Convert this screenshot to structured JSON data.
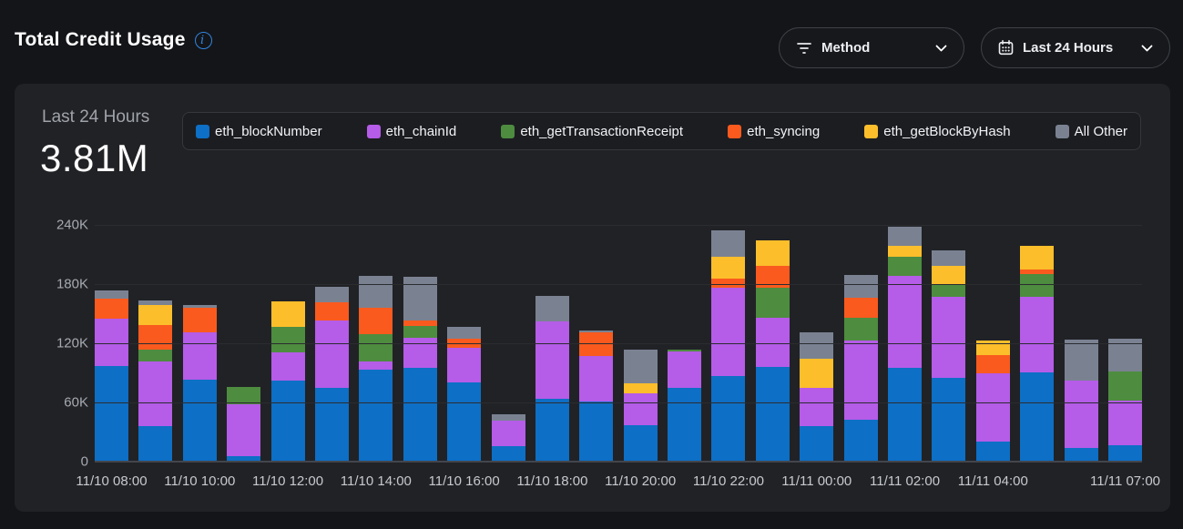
{
  "header": {
    "title": "Total Credit Usage"
  },
  "filters": {
    "method_label": "Method",
    "range_label": "Last 24 Hours"
  },
  "card": {
    "summary_label": "Last 24 Hours",
    "summary_value": "3.81M"
  },
  "icons": {
    "info": "info-icon",
    "filter": "filter-icon",
    "calendar": "calendar-icon",
    "chevron": "chevron-down-icon"
  },
  "colors": {
    "accent_blue": "#2F86E0",
    "page_bg": "#141519",
    "card_bg": "#212226",
    "legend_bg": "#1c1d21"
  },
  "chart_data": {
    "type": "bar",
    "stacked": true,
    "title": "Total Credit Usage",
    "period": "Last 24 Hours",
    "total": "3.81M",
    "ylim": [
      0,
      240000
    ],
    "y_ticks": [
      "0",
      "60K",
      "120K",
      "180K",
      "240K"
    ],
    "grid": true,
    "legend_position": "top",
    "x": [
      "11/10 08:00",
      "11/10 09:00",
      "11/10 10:00",
      "11/10 11:00",
      "11/10 12:00",
      "11/10 13:00",
      "11/10 14:00",
      "11/10 15:00",
      "11/10 16:00",
      "11/10 17:00",
      "11/10 18:00",
      "11/10 19:00",
      "11/10 20:00",
      "11/10 21:00",
      "11/10 22:00",
      "11/10 23:00",
      "11/11 00:00",
      "11/11 01:00",
      "11/11 02:00",
      "11/11 03:00",
      "11/11 04:00",
      "11/11 05:00",
      "11/11 06:00",
      "11/11 07:00"
    ],
    "x_tick_indices": [
      0,
      2,
      4,
      6,
      8,
      10,
      12,
      14,
      16,
      18,
      20,
      23
    ],
    "series": [
      {
        "name": "eth_blockNumber",
        "color": "#0D6FC5",
        "values": [
          96600,
          36000,
          83100,
          6000,
          82000,
          74800,
          93100,
          95300,
          80600,
          16000,
          63700,
          60600,
          36900,
          74500,
          86800,
          95600,
          36000,
          42500,
          94800,
          84600,
          20000,
          90800,
          13800,
          16900
        ]
      },
      {
        "name": "eth_chainId",
        "color": "#B55CE8",
        "values": [
          48000,
          65500,
          47700,
          52000,
          29100,
          68600,
          8300,
          30600,
          34800,
          25500,
          78500,
          46200,
          32300,
          37200,
          89200,
          50000,
          38800,
          80000,
          93500,
          82200,
          69200,
          76000,
          68300,
          45200
        ]
      },
      {
        "name": "eth_getTransactionReceipt",
        "color": "#4E8C3F",
        "values": [
          0,
          11700,
          0,
          18000,
          25500,
          0,
          27600,
          11600,
          0,
          0,
          0,
          0,
          0,
          2000,
          0,
          30600,
          0,
          23700,
          19400,
          13200,
          0,
          23100,
          0,
          29200
        ]
      },
      {
        "name": "eth_syncing",
        "color": "#FA5A1E",
        "values": [
          20600,
          25200,
          25500,
          0,
          0,
          18400,
          26700,
          5800,
          9200,
          0,
          0,
          24000,
          0,
          0,
          9200,
          22000,
          0,
          20000,
          0,
          0,
          18500,
          4900,
          0,
          0
        ]
      },
      {
        "name": "eth_getBlockByHash",
        "color": "#FCBE2B",
        "values": [
          0,
          20000,
          0,
          0,
          26000,
          0,
          0,
          0,
          0,
          0,
          0,
          0,
          9800,
          0,
          22500,
          26400,
          29800,
          0,
          11400,
          18500,
          14800,
          23700,
          0,
          0
        ]
      },
      {
        "name": "All Other",
        "color": "#7A8292",
        "values": [
          8000,
          5200,
          2200,
          0,
          0,
          15300,
          32200,
          43800,
          12300,
          6200,
          26200,
          2200,
          34800,
          0,
          26800,
          0,
          26500,
          23100,
          19400,
          15400,
          0,
          0,
          41500,
          33200
        ]
      }
    ]
  }
}
